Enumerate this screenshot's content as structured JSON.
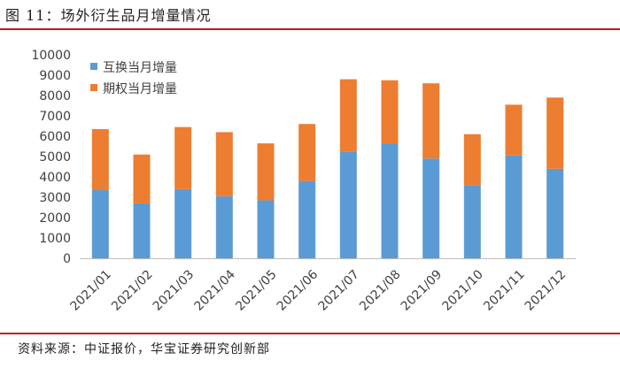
{
  "title": "图 11：场外衍生品月增量情况",
  "source": "资料来源：中证报价，华宝证券研究创新部",
  "colors": {
    "series1": "#5b9bd5",
    "series2": "#ed7d31",
    "rule": "#c8161e"
  },
  "chart_data": {
    "type": "bar",
    "stacked": true,
    "categories": [
      "2021/01",
      "2021/02",
      "2021/03",
      "2021/04",
      "2021/05",
      "2021/06",
      "2021/07",
      "2021/08",
      "2021/09",
      "2021/10",
      "2021/11",
      "2021/12"
    ],
    "series": [
      {
        "name": "互换当月增量",
        "values": [
          3350,
          2700,
          3400,
          3050,
          2850,
          3800,
          5250,
          5650,
          4900,
          3600,
          5050,
          4400
        ]
      },
      {
        "name": "期权当月增量",
        "values": [
          3000,
          2400,
          3050,
          3150,
          2800,
          2800,
          3550,
          3100,
          3700,
          2500,
          2500,
          3500
        ]
      }
    ],
    "ylim": [
      0,
      10000
    ],
    "yticks": [
      0,
      1000,
      2000,
      3000,
      4000,
      5000,
      6000,
      7000,
      8000,
      9000,
      10000
    ],
    "grid": false,
    "legend": "top-left"
  }
}
